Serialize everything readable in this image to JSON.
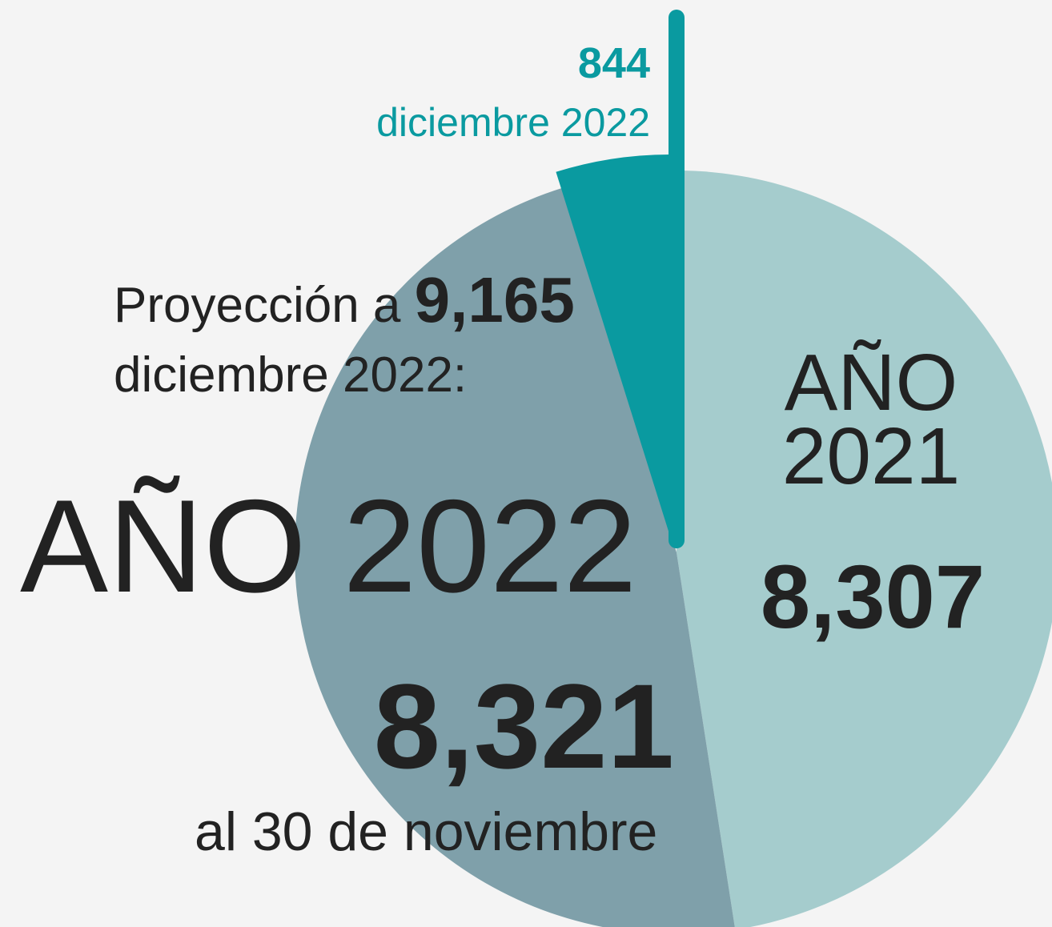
{
  "chart_data": {
    "type": "pie",
    "categories": [
      "AÑO 2021",
      "AÑO 2022",
      "diciembre 2022"
    ],
    "values": [
      8307,
      8321,
      844
    ],
    "value_labels": [
      "8,307",
      "8,321",
      "844"
    ],
    "colors": [
      "#a5cccd",
      "#7fa0aa",
      "#0a9aa0"
    ],
    "projection": {
      "text_before": "Proyección a",
      "value_label": "9,165",
      "text_after": "diciembre 2022:"
    },
    "note_2022": "al 30 de noviembre"
  }
}
